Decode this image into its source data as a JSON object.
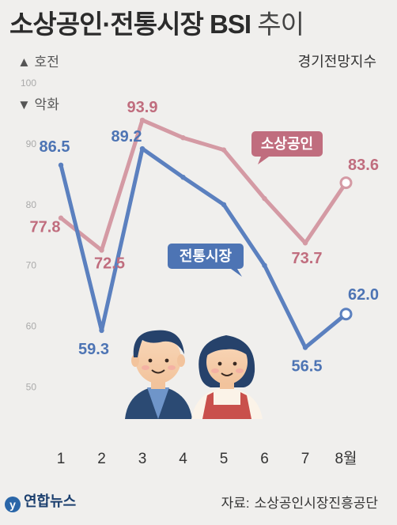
{
  "title": {
    "main": "소상공인·전통시장 BSI",
    "suffix": "추이"
  },
  "legend": {
    "up": "▲ 호전",
    "down": "▼ 악화"
  },
  "metric_label": "경기전망지수",
  "footer": {
    "logo": "연합뉴스",
    "source_prefix": "자료:",
    "source": "소상공인시장진흥공단"
  },
  "colors": {
    "small_business": "#d49aa4",
    "traditional_market": "#5b80bf",
    "small_business_label": "#c06d7e",
    "traditional_market_label": "#4d74b4"
  },
  "chart_data": {
    "type": "line",
    "categories": [
      "1",
      "2",
      "3",
      "4",
      "5",
      "6",
      "7",
      "8월"
    ],
    "ylim": [
      45,
      100
    ],
    "yticks": [
      50,
      60,
      70,
      80,
      90,
      100
    ],
    "grid": false,
    "series": [
      {
        "name": "소상공인",
        "values": [
          77.8,
          72.5,
          93.9,
          91.0,
          89.0,
          81.0,
          73.7,
          83.6
        ]
      },
      {
        "name": "전통시장",
        "values": [
          86.5,
          59.3,
          89.2,
          84.5,
          80.0,
          70.0,
          56.5,
          62.0
        ]
      }
    ],
    "data_labels": [
      {
        "series": 0,
        "index": 0,
        "text": "77.8"
      },
      {
        "series": 0,
        "index": 1,
        "text": "72.5"
      },
      {
        "series": 0,
        "index": 2,
        "text": "93.9"
      },
      {
        "series": 0,
        "index": 6,
        "text": "73.7"
      },
      {
        "series": 0,
        "index": 7,
        "text": "83.6"
      },
      {
        "series": 1,
        "index": 0,
        "text": "86.5"
      },
      {
        "series": 1,
        "index": 1,
        "text": "59.3"
      },
      {
        "series": 1,
        "index": 2,
        "text": "89.2"
      },
      {
        "series": 1,
        "index": 6,
        "text": "56.5"
      },
      {
        "series": 1,
        "index": 7,
        "text": "62.0"
      }
    ]
  }
}
